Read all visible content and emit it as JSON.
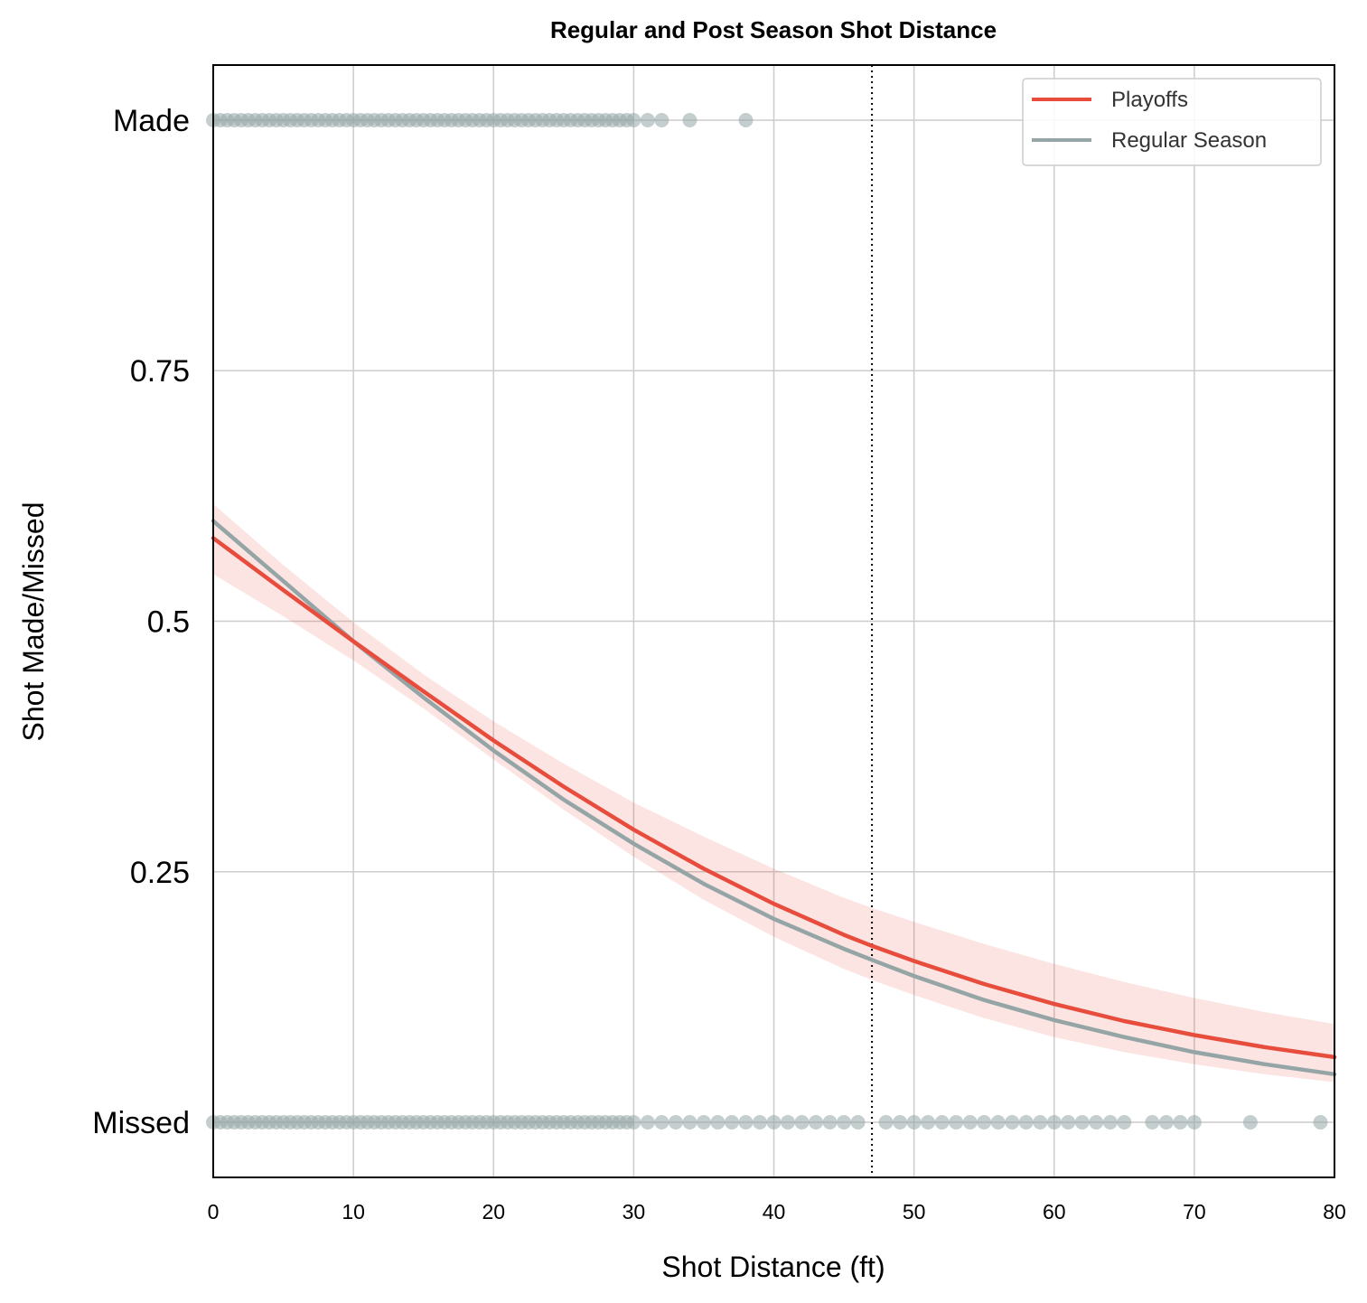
{
  "chart_data": {
    "type": "line",
    "title": "Regular and Post Season Shot Distance",
    "xlabel": "Shot Distance (ft)",
    "ylabel": "Shot Made/Missed",
    "xlim": [
      0,
      80
    ],
    "ylim": [
      -0.055,
      1.055
    ],
    "xticks": [
      0,
      10,
      20,
      30,
      40,
      50,
      60,
      70,
      80
    ],
    "xtick_labels": [
      "0",
      "10",
      "20",
      "30",
      "40",
      "50",
      "60",
      "70",
      "80"
    ],
    "yticks": [
      0,
      0.25,
      0.5,
      0.75,
      1
    ],
    "ytick_labels": [
      "Missed",
      "0.25",
      "0.5",
      "0.75",
      "Made"
    ],
    "grid": true,
    "legend_position": "top-right",
    "reference_line": {
      "x": 47,
      "style": "dotted",
      "color": "#000000"
    },
    "x": [
      0,
      5,
      10,
      15,
      20,
      25,
      30,
      35,
      40,
      45,
      47,
      50,
      55,
      60,
      65,
      70,
      75,
      80
    ],
    "series": [
      {
        "name": "Playoffs",
        "color": "#e74c3c",
        "values": [
          0.583,
          0.531,
          0.48,
          0.43,
          0.381,
          0.335,
          0.292,
          0.253,
          0.218,
          0.187,
          0.176,
          0.161,
          0.138,
          0.118,
          0.101,
          0.087,
          0.075,
          0.065
        ],
        "ci_lower": [
          0.547,
          0.505,
          0.461,
          0.413,
          0.362,
          0.312,
          0.265,
          0.222,
          0.185,
          0.153,
          0.142,
          0.127,
          0.104,
          0.085,
          0.07,
          0.058,
          0.048,
          0.04
        ],
        "ci_upper": [
          0.617,
          0.556,
          0.499,
          0.447,
          0.4,
          0.358,
          0.319,
          0.285,
          0.253,
          0.224,
          0.214,
          0.2,
          0.178,
          0.158,
          0.14,
          0.124,
          0.11,
          0.098
        ]
      },
      {
        "name": "Regular Season",
        "color": "#95a5a6",
        "values": [
          0.6,
          0.54,
          0.48,
          0.424,
          0.371,
          0.322,
          0.278,
          0.238,
          0.203,
          0.173,
          0.162,
          0.146,
          0.122,
          0.102,
          0.085,
          0.07,
          0.058,
          0.048
        ]
      }
    ],
    "made_distances": [
      0,
      0.5,
      1,
      1.5,
      2,
      2.5,
      3,
      3.5,
      4,
      4.5,
      5,
      5.5,
      6,
      6.5,
      7,
      7.5,
      8,
      8.5,
      9,
      9.5,
      10,
      10.5,
      11,
      11.5,
      12,
      12.5,
      13,
      13.5,
      14,
      14.5,
      15,
      15.5,
      16,
      16.5,
      17,
      17.5,
      18,
      18.5,
      19,
      19.5,
      20,
      20.5,
      21,
      21.5,
      22,
      22.5,
      23,
      23.5,
      24,
      24.5,
      25,
      25.5,
      26,
      26.5,
      27,
      27.5,
      28,
      28.5,
      29,
      29.5,
      30,
      31,
      32,
      34,
      38
    ],
    "missed_distances": [
      0,
      0.5,
      1,
      1.5,
      2,
      2.5,
      3,
      3.5,
      4,
      4.5,
      5,
      5.5,
      6,
      6.5,
      7,
      7.5,
      8,
      8.5,
      9,
      9.5,
      10,
      10.5,
      11,
      11.5,
      12,
      12.5,
      13,
      13.5,
      14,
      14.5,
      15,
      15.5,
      16,
      16.5,
      17,
      17.5,
      18,
      18.5,
      19,
      19.5,
      20,
      20.5,
      21,
      21.5,
      22,
      22.5,
      23,
      23.5,
      24,
      24.5,
      25,
      25.5,
      26,
      26.5,
      27,
      27.5,
      28,
      28.5,
      29,
      29.5,
      30,
      31,
      32,
      33,
      34,
      35,
      36,
      37,
      38,
      39,
      40,
      41,
      42,
      43,
      44,
      45,
      46,
      48,
      49,
      50,
      51,
      52,
      53,
      54,
      55,
      56,
      57,
      58,
      59,
      60,
      61,
      62,
      63,
      64,
      65,
      67,
      68,
      69,
      70,
      74,
      79
    ]
  }
}
